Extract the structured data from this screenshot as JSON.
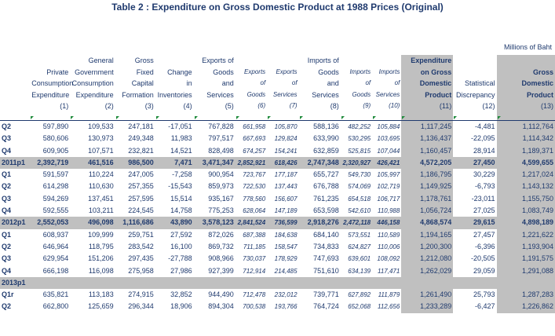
{
  "title": "Table 2 :  Expenditure on Gross Domestic Product at 1988 Prices (Original)",
  "unit": "Millions of Baht",
  "columns": [
    {
      "lines": [
        "Private",
        "Consumption",
        "Expenditure"
      ],
      "num": "(1)",
      "style": "n"
    },
    {
      "lines": [
        "General",
        "Government",
        "Consumption",
        "Expenditure"
      ],
      "num": "(2)",
      "style": "n"
    },
    {
      "lines": [
        "Gross",
        "Fixed",
        "Capital",
        "Formation"
      ],
      "num": "(3)",
      "style": "n"
    },
    {
      "lines": [
        "Change",
        "in",
        "Inventories"
      ],
      "num": "(4)",
      "style": "n"
    },
    {
      "lines": [
        "Exports of",
        "Goods",
        "and",
        "Services"
      ],
      "num": "(5)",
      "style": "n"
    },
    {
      "lines": [
        "Exports",
        "of",
        "Goods"
      ],
      "num": "(6)",
      "style": "i"
    },
    {
      "lines": [
        "Exports",
        "of",
        "Services"
      ],
      "num": "(7)",
      "style": "i"
    },
    {
      "lines": [
        "Imports of",
        "Goods",
        "and",
        "Services"
      ],
      "num": "(8)",
      "style": "n"
    },
    {
      "lines": [
        "Imports",
        "of",
        "Goods"
      ],
      "num": "(9)",
      "style": "i"
    },
    {
      "lines": [
        "Imports",
        "of",
        "Services"
      ],
      "num": "(10)",
      "style": "i"
    },
    {
      "lines": [
        "Expenditure",
        "on Gross",
        "Domestic",
        "Product"
      ],
      "num": "(11)",
      "style": "h"
    },
    {
      "lines": [
        "Statistical",
        "Discrepancy"
      ],
      "num": "(12)",
      "style": "n"
    },
    {
      "lines": [
        "Gross",
        "Domestic",
        "Product"
      ],
      "num": "(13)",
      "style": "h"
    }
  ],
  "rows": [
    {
      "label": "Q2",
      "type": "q",
      "values": [
        "597,890",
        "109,533",
        "247,181",
        "-17,051",
        "767,828",
        "661,958",
        "105,870",
        "588,136",
        "482,252",
        "105,884",
        "1,117,245",
        "-4,481",
        "1,112,764"
      ]
    },
    {
      "label": "Q3",
      "type": "q",
      "values": [
        "580,606",
        "130,973",
        "249,348",
        "11,983",
        "797,517",
        "667,693",
        "129,824",
        "633,990",
        "530,295",
        "103,695",
        "1,136,437",
        "-22,095",
        "1,114,342"
      ]
    },
    {
      "label": "Q4",
      "type": "q",
      "values": [
        "609,905",
        "107,571",
        "232,821",
        "14,521",
        "828,498",
        "674,257",
        "154,241",
        "632,859",
        "525,815",
        "107,044",
        "1,160,457",
        "28,914",
        "1,189,371"
      ]
    },
    {
      "label": "2011p1",
      "type": "y",
      "values": [
        "2,392,719",
        "461,516",
        "986,500",
        "7,471",
        "3,471,347",
        "2,852,921",
        "618,426",
        "2,747,348",
        "2,320,927",
        "426,421",
        "4,572,205",
        "27,450",
        "4,599,655"
      ]
    },
    {
      "label": "Q1",
      "type": "q",
      "values": [
        "591,597",
        "110,224",
        "247,005",
        "-7,258",
        "900,954",
        "723,767",
        "177,187",
        "655,727",
        "549,730",
        "105,997",
        "1,186,795",
        "30,229",
        "1,217,024"
      ]
    },
    {
      "label": "Q2",
      "type": "q",
      "values": [
        "614,298",
        "110,630",
        "257,355",
        "-15,543",
        "859,973",
        "722,530",
        "137,443",
        "676,788",
        "574,069",
        "102,719",
        "1,149,925",
        "-6,793",
        "1,143,132"
      ]
    },
    {
      "label": "Q3",
      "type": "q",
      "values": [
        "594,269",
        "137,451",
        "257,595",
        "15,514",
        "935,167",
        "778,560",
        "156,607",
        "761,235",
        "654,518",
        "106,717",
        "1,178,761",
        "-23,011",
        "1,155,750"
      ]
    },
    {
      "label": "Q4",
      "type": "q",
      "values": [
        "592,555",
        "103,211",
        "224,545",
        "14,758",
        "775,253",
        "628,064",
        "147,189",
        "653,598",
        "542,610",
        "110,988",
        "1,056,724",
        "27,025",
        "1,083,749"
      ]
    },
    {
      "label": "2012p1",
      "type": "y",
      "values": [
        "2,552,053",
        "496,098",
        "1,116,686",
        "43,890",
        "3,578,123",
        "2,841,524",
        "736,599",
        "2,918,276",
        "2,472,118",
        "446,158",
        "4,868,574",
        "29,615",
        "4,898,189"
      ]
    },
    {
      "label": "Q1",
      "type": "q",
      "values": [
        "608,937",
        "109,999",
        "259,751",
        "27,592",
        "872,026",
        "687,388",
        "184,638",
        "684,140",
        "573,551",
        "110,589",
        "1,194,165",
        "27,457",
        "1,221,622"
      ]
    },
    {
      "label": "Q2",
      "type": "q",
      "values": [
        "646,964",
        "118,795",
        "283,542",
        "16,100",
        "869,732",
        "711,185",
        "158,547",
        "734,833",
        "624,827",
        "110,006",
        "1,200,300",
        "-6,396",
        "1,193,904"
      ]
    },
    {
      "label": "Q3",
      "type": "q",
      "values": [
        "629,954",
        "151,206",
        "297,435",
        "-27,788",
        "908,966",
        "730,037",
        "178,929",
        "747,693",
        "639,601",
        "108,092",
        "1,212,080",
        "-20,505",
        "1,191,575"
      ]
    },
    {
      "label": "Q4",
      "type": "q",
      "values": [
        "666,198",
        "116,098",
        "275,958",
        "27,986",
        "927,399",
        "712,914",
        "214,485",
        "751,610",
        "634,139",
        "117,471",
        "1,262,029",
        "29,059",
        "1,291,088"
      ]
    },
    {
      "label": "2013p1",
      "type": "y",
      "values": [
        "",
        "",
        "",
        "",
        "",
        "",
        "",
        "",
        "",
        "",
        "",
        "",
        ""
      ]
    },
    {
      "label": "Q1r",
      "type": "q",
      "values": [
        "635,821",
        "113,183",
        "274,915",
        "32,852",
        "944,490",
        "712,478",
        "232,012",
        "739,771",
        "627,892",
        "111,879",
        "1,261,490",
        "25,793",
        "1,287,283"
      ]
    },
    {
      "label": "Q2",
      "type": "q",
      "values": [
        "662,800",
        "125,659",
        "296,344",
        "18,906",
        "894,304",
        "700,538",
        "193,766",
        "764,724",
        "652,068",
        "112,656",
        "1,233,289",
        "-6,427",
        "1,226,862"
      ]
    }
  ],
  "colors": {
    "text": "#1f3a6e",
    "highlight": "#c0c0c0",
    "marker": "#1e8a3a"
  }
}
